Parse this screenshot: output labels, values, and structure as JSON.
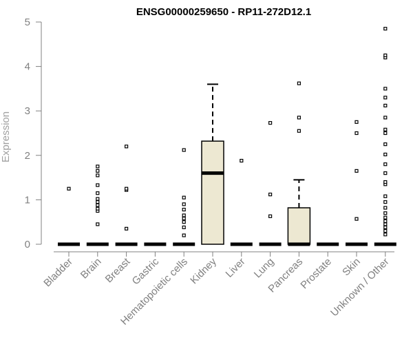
{
  "chart_data": {
    "type": "boxplot",
    "title": "ENSG00000259650 - RP11-272D12.1",
    "ylabel": "Expression",
    "xlabel": "",
    "ylim": [
      0,
      5
    ],
    "yticks": [
      0,
      1,
      2,
      3,
      4,
      5
    ],
    "grid": false,
    "colors": {
      "box_fill": "#ede8d2",
      "box_stroke": "#000000",
      "axis": "#808080",
      "points": "#000000"
    },
    "categories": [
      "Bladder",
      "Brain",
      "Breast",
      "Gastric",
      "Hematopoietic cells",
      "Kidney",
      "Liver",
      "Lung",
      "Pancreas",
      "Prostate",
      "Skin",
      "Unknown / Other"
    ],
    "boxes": [
      {
        "category": "Bladder",
        "q1": 0,
        "median": 0,
        "q3": 0,
        "whisker_low": 0,
        "whisker_high": 0,
        "outliers": [
          1.25
        ]
      },
      {
        "category": "Brain",
        "q1": 0,
        "median": 0,
        "q3": 0,
        "whisker_low": 0,
        "whisker_high": 0,
        "outliers": [
          0.45,
          0.75,
          0.8,
          0.88,
          0.95,
          1.02,
          1.15,
          1.33,
          1.55,
          1.65,
          1.75
        ]
      },
      {
        "category": "Breast",
        "q1": 0,
        "median": 0,
        "q3": 0,
        "whisker_low": 0,
        "whisker_high": 0,
        "outliers": [
          0.35,
          1.22,
          1.25,
          2.2
        ]
      },
      {
        "category": "Gastric",
        "q1": 0,
        "median": 0,
        "q3": 0,
        "whisker_low": 0,
        "whisker_high": 0,
        "outliers": []
      },
      {
        "category": "Hematopoietic cells",
        "q1": 0,
        "median": 0,
        "q3": 0,
        "whisker_low": 0,
        "whisker_high": 0,
        "outliers": [
          0.2,
          0.38,
          0.5,
          0.58,
          0.65,
          0.78,
          0.9,
          1.05,
          2.12
        ]
      },
      {
        "category": "Kidney",
        "q1": 0,
        "median": 1.6,
        "q3": 2.32,
        "whisker_low": 0,
        "whisker_high": 3.6,
        "outliers": []
      },
      {
        "category": "Liver",
        "q1": 0,
        "median": 0,
        "q3": 0,
        "whisker_low": 0,
        "whisker_high": 0,
        "outliers": [
          1.88
        ]
      },
      {
        "category": "Lung",
        "q1": 0,
        "median": 0,
        "q3": 0,
        "whisker_low": 0,
        "whisker_high": 0,
        "outliers": [
          0.63,
          1.12,
          2.73
        ]
      },
      {
        "category": "Pancreas",
        "q1": 0,
        "median": 0,
        "q3": 0.82,
        "whisker_low": 0,
        "whisker_high": 1.45,
        "outliers": [
          2.55,
          2.85,
          3.62
        ]
      },
      {
        "category": "Prostate",
        "q1": 0,
        "median": 0,
        "q3": 0,
        "whisker_low": 0,
        "whisker_high": 0,
        "outliers": []
      },
      {
        "category": "Skin",
        "q1": 0,
        "median": 0,
        "q3": 0,
        "whisker_low": 0,
        "whisker_high": 0,
        "outliers": [
          0.57,
          1.65,
          2.5,
          2.75
        ]
      },
      {
        "category": "Unknown / Other",
        "q1": 0,
        "median": 0,
        "q3": 0,
        "whisker_low": 0,
        "whisker_high": 0,
        "outliers": [
          0.22,
          0.3,
          0.38,
          0.45,
          0.52,
          0.6,
          0.7,
          0.82,
          0.95,
          1.08,
          1.35,
          1.4,
          1.6,
          1.8,
          2.02,
          2.25,
          2.5,
          2.58,
          2.85,
          3.12,
          3.3,
          3.5,
          4.2,
          4.25,
          4.85
        ]
      }
    ]
  }
}
